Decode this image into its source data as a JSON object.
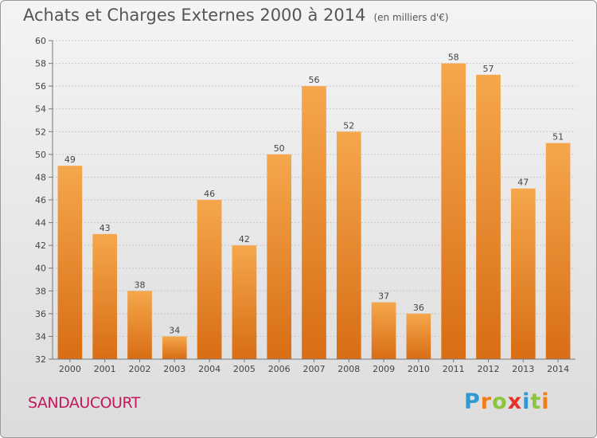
{
  "title": "Achats et Charges Externes 2000 à 2014",
  "subtitle": "(en milliers d'€)",
  "town": "SANDAUCOURT",
  "brand": {
    "text": "Proxiti",
    "letter_colors": [
      "#2e9ad0",
      "#ef7d1a",
      "#8cc63f",
      "#e5332a",
      "#2e9ad0",
      "#8cc63f",
      "#ef7d1a"
    ]
  },
  "colors": {
    "bar_top": "#f5a74c",
    "bar_bottom": "#d86d15",
    "grid": "#c8c8c8",
    "title": "#555555",
    "town": "#c2185b"
  },
  "chart_data": {
    "type": "bar",
    "categories": [
      "2000",
      "2001",
      "2002",
      "2003",
      "2004",
      "2005",
      "2006",
      "2007",
      "2008",
      "2009",
      "2010",
      "2011",
      "2012",
      "2013",
      "2014"
    ],
    "values": [
      49,
      43,
      38,
      34,
      46,
      42,
      50,
      56,
      52,
      37,
      36,
      58,
      57,
      47,
      51
    ],
    "data_labels": [
      "49",
      "43",
      "38",
      "34",
      "46",
      "42",
      "50",
      "56",
      "52",
      "37",
      "36",
      "58",
      "57",
      "47",
      "51"
    ],
    "y_ticks": [
      "32",
      "34",
      "36",
      "38",
      "40",
      "42",
      "44",
      "46",
      "48",
      "50",
      "52",
      "54",
      "56",
      "58",
      "60"
    ],
    "ylim": [
      32,
      60
    ],
    "grid": true,
    "title": "Achats et Charges Externes 2000 à 2014",
    "xlabel": "",
    "ylabel": ""
  }
}
